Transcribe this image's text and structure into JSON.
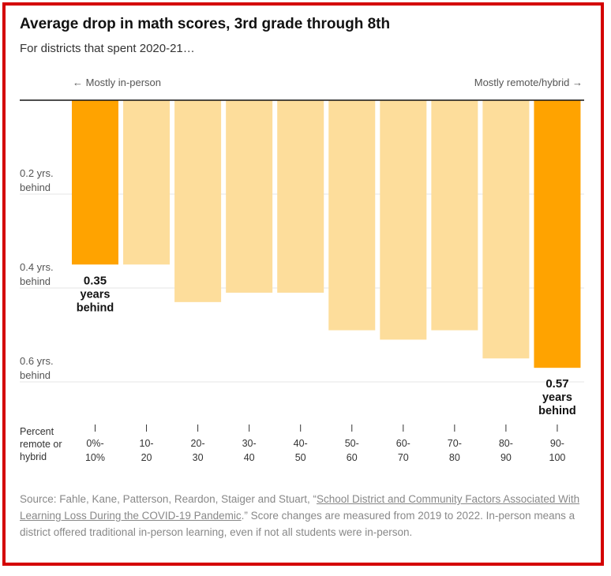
{
  "header": {
    "title": "Average drop in math scores, 3rd grade through 8th",
    "subtitle": "For districts that spent 2020-21…"
  },
  "directions": {
    "left": "← Mostly in-person",
    "right": "Mostly remote/hybrid →"
  },
  "y_labels": [
    {
      "line1": "0.2 yrs.",
      "line2": "behind"
    },
    {
      "line1": "0.4 yrs.",
      "line2": "behind"
    },
    {
      "line1": "0.6 yrs.",
      "line2": "behind"
    }
  ],
  "x_header": {
    "line1": "Percent",
    "line2": "remote or",
    "line3": "hybrid"
  },
  "colors": {
    "highlight": "#ffa300",
    "normal": "#fddd9b",
    "baseline": "#121212",
    "grid": "#e6e6e6"
  },
  "chart_data": {
    "type": "bar",
    "orientation": "downward",
    "title": "Average drop in math scores, 3rd grade through 8th",
    "subtitle": "For districts that spent 2020-21…",
    "xlabel": "Percent remote or hybrid",
    "ylabel": "Years behind",
    "ylim": [
      0,
      0.6
    ],
    "yticks": [
      0.2,
      0.4,
      0.6
    ],
    "categories": [
      {
        "line1": "0%-",
        "line2": "10%"
      },
      {
        "line1": "10-",
        "line2": "20"
      },
      {
        "line1": "20-",
        "line2": "30"
      },
      {
        "line1": "30-",
        "line2": "40"
      },
      {
        "line1": "40-",
        "line2": "50"
      },
      {
        "line1": "50-",
        "line2": "60"
      },
      {
        "line1": "60-",
        "line2": "70"
      },
      {
        "line1": "70-",
        "line2": "80"
      },
      {
        "line1": "80-",
        "line2": "90"
      },
      {
        "line1": "90-",
        "line2": "100"
      }
    ],
    "values": [
      0.35,
      0.35,
      0.43,
      0.41,
      0.41,
      0.49,
      0.51,
      0.49,
      0.55,
      0.57
    ],
    "highlighted": [
      true,
      false,
      false,
      false,
      false,
      false,
      false,
      false,
      false,
      true
    ],
    "annotations": [
      {
        "bar": 0,
        "line1": "0.35",
        "line2": "years",
        "line3": "behind"
      },
      {
        "bar": 9,
        "line1": "0.57",
        "line2": "years",
        "line3": "behind"
      }
    ]
  },
  "source": {
    "prefix": "Source: Fahle, Kane, Patterson, Reardon, Staiger and Stuart, “",
    "link": "School District and Community Factors Associated With Learning Loss During the COVID-19 Pandemic",
    "suffix": ".” Score changes are measured from 2019 to 2022. In-person means a district offered traditional in-person learning, even if not all students were in-person."
  }
}
